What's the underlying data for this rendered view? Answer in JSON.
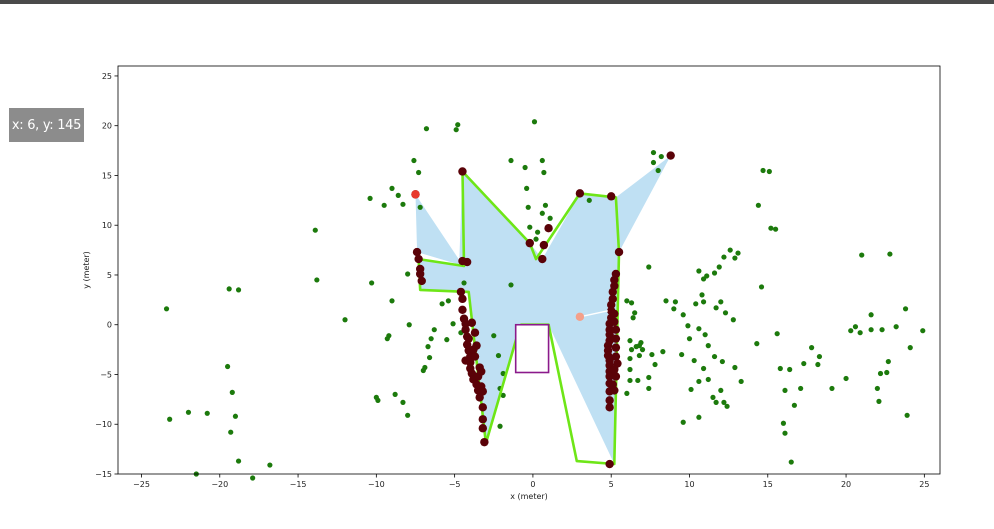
{
  "viewer": {
    "coordinate_readout": "x: 6, y: 145"
  },
  "colors": {
    "obstacle_points": "#1c7a0c",
    "boundary_points": "#5a0208",
    "free_space": "#bfe0f3",
    "polygon_edge": "#6ee617",
    "vehicle_box": "#8b1a8b",
    "target_marker": "#f4a08a",
    "start_marker": "#e8392d"
  },
  "chart_data": {
    "type": "scatter",
    "title": "",
    "xlabel": "x (meter)",
    "ylabel": "y (meter)",
    "xlim": [
      -26.5,
      26.0
    ],
    "ylim": [
      -15,
      26
    ],
    "xticks": [
      -25,
      -20,
      -15,
      -10,
      -5,
      0,
      5,
      10,
      15,
      20,
      25
    ],
    "yticks": [
      -15,
      -10,
      -5,
      0,
      5,
      10,
      15,
      20,
      25
    ],
    "xtick_labels": [
      "−25",
      "−20",
      "−15",
      "−10",
      "−5",
      "0",
      "5",
      "10",
      "15",
      "20",
      "25"
    ],
    "ytick_labels": [
      "−15",
      "−10",
      "−5",
      "0",
      "5",
      "10",
      "15",
      "20",
      "25"
    ],
    "grid": false,
    "free_space_polygon": [
      [
        1.0,
        0.0
      ],
      [
        5.2,
        -14.0
      ],
      [
        5.5,
        7.3
      ],
      [
        8.8,
        17.0
      ],
      [
        5.3,
        12.8
      ],
      [
        3.0,
        13.2
      ],
      [
        0.6,
        6.6
      ],
      [
        -0.2,
        8.2
      ],
      [
        -4.5,
        15.4
      ],
      [
        -4.7,
        6.5
      ],
      [
        -7.5,
        13.1
      ],
      [
        -7.4,
        7.3
      ],
      [
        -4.4,
        5.9
      ],
      [
        -7.3,
        6.6
      ],
      [
        -7.2,
        3.5
      ],
      [
        -4.1,
        3.3
      ],
      [
        -3.0,
        -11.9
      ],
      [
        -0.8,
        0.0
      ]
    ],
    "drivable_boundary": [
      [
        -0.8,
        0.0
      ],
      [
        -3.0,
        -11.9
      ],
      [
        -4.1,
        3.3
      ],
      [
        -7.2,
        3.5
      ],
      [
        -7.3,
        6.6
      ],
      [
        -4.4,
        5.9
      ],
      [
        -4.5,
        15.4
      ],
      [
        -0.2,
        8.2
      ],
      [
        0.2,
        6.6
      ],
      [
        3.0,
        13.2
      ],
      [
        5.3,
        12.8
      ],
      [
        5.5,
        7.3
      ],
      [
        5.2,
        -14.0
      ],
      [
        2.8,
        -13.7
      ],
      [
        1.0,
        0.0
      ],
      [
        -0.8,
        0.0
      ]
    ],
    "vehicle_box": {
      "x_min": -1.1,
      "x_max": 1.0,
      "y_min": -4.8,
      "y_max": 0.0
    },
    "markers": [
      {
        "role": "start",
        "x": -7.5,
        "y": 13.1
      },
      {
        "role": "target",
        "x": 3.0,
        "y": 0.8
      }
    ],
    "obstacle_points": [
      [
        -23.4,
        1.6
      ],
      [
        -23.2,
        -9.5
      ],
      [
        -22,
        -8.8
      ],
      [
        -21.5,
        -15
      ],
      [
        -20.8,
        -8.9
      ],
      [
        -19.4,
        3.6
      ],
      [
        -18.8,
        3.5
      ],
      [
        -19.5,
        -4.2
      ],
      [
        -19.2,
        -6.8
      ],
      [
        -19,
        -9.2
      ],
      [
        -19.3,
        -10.8
      ],
      [
        -18.8,
        -13.7
      ],
      [
        -17.9,
        -15.4
      ],
      [
        -16.8,
        -14.1
      ],
      [
        -13.9,
        9.5
      ],
      [
        -13.8,
        4.5
      ],
      [
        -12,
        0.5
      ],
      [
        -10.4,
        12.7
      ],
      [
        -10.3,
        4.2
      ],
      [
        -10,
        -7.3
      ],
      [
        -9.9,
        -7.6
      ],
      [
        -9.3,
        -1.4
      ],
      [
        -9.2,
        -1.1
      ],
      [
        -9,
        2.4
      ],
      [
        -8.8,
        -7
      ],
      [
        -8.3,
        -7.8
      ],
      [
        -8,
        -9.1
      ],
      [
        -9.5,
        12
      ],
      [
        -9,
        13.7
      ],
      [
        -8.6,
        13
      ],
      [
        -8.3,
        12.1
      ],
      [
        -8,
        5.1
      ],
      [
        -7.9,
        0
      ],
      [
        -7.6,
        16.5
      ],
      [
        -7.3,
        15.3
      ],
      [
        -7.2,
        11.8
      ],
      [
        -6.8,
        19.7
      ],
      [
        -6.3,
        -0.5
      ],
      [
        -6.5,
        -1.4
      ],
      [
        -6.7,
        -2.2
      ],
      [
        -6.6,
        -3.3
      ],
      [
        -6.9,
        -4.3
      ],
      [
        -7,
        -4.6
      ],
      [
        -5.8,
        2.1
      ],
      [
        -5.4,
        2.4
      ],
      [
        -5.1,
        0.1
      ],
      [
        -4.9,
        19.6
      ],
      [
        -4.8,
        20.1
      ],
      [
        -4.6,
        -0.8
      ],
      [
        -5.5,
        -1.5
      ],
      [
        -4.2,
        -2.1
      ],
      [
        -4.4,
        4.2
      ],
      [
        -2.5,
        -1.1
      ],
      [
        -2.2,
        -3.1
      ],
      [
        -2.1,
        -6.4
      ],
      [
        -1.4,
        16.5
      ],
      [
        -1.9,
        -4.9
      ],
      [
        -1.9,
        -7.1
      ],
      [
        -2.1,
        -10.2
      ],
      [
        0.1,
        20.4
      ],
      [
        -0.5,
        15.8
      ],
      [
        -0.4,
        13.7
      ],
      [
        -0.3,
        11.8
      ],
      [
        -0.2,
        9.8
      ],
      [
        0.6,
        16.5
      ],
      [
        0.7,
        15.3
      ],
      [
        0.6,
        11.2
      ],
      [
        0.8,
        12
      ],
      [
        1.1,
        10.7
      ],
      [
        0.3,
        9.3
      ],
      [
        0.2,
        8.6
      ],
      [
        -1.4,
        4
      ],
      [
        3.6,
        12.5
      ],
      [
        5.1,
        12.8
      ],
      [
        6,
        2.4
      ],
      [
        6.3,
        2.2
      ],
      [
        6.4,
        0.7
      ],
      [
        6.5,
        1.2
      ],
      [
        6.2,
        -1.6
      ],
      [
        6.3,
        -2.5
      ],
      [
        6.2,
        -3.4
      ],
      [
        6.2,
        -4.5
      ],
      [
        6.2,
        -5.6
      ],
      [
        6,
        -6.9
      ],
      [
        6.6,
        -2.2
      ],
      [
        6.8,
        -2.1
      ],
      [
        6.7,
        -5.6
      ],
      [
        6.9,
        -1.8
      ],
      [
        6.8,
        -3.1
      ],
      [
        7,
        -2.5
      ],
      [
        7.4,
        -5.3
      ],
      [
        7.4,
        -6.4
      ],
      [
        7.7,
        16.3
      ],
      [
        7.7,
        17.3
      ],
      [
        8,
        15.5
      ],
      [
        8.2,
        16.9
      ],
      [
        7.4,
        5.8
      ],
      [
        8.5,
        2.4
      ],
      [
        9.1,
        2.3
      ],
      [
        9.6,
        1
      ],
      [
        9,
        1.6
      ],
      [
        9.9,
        -0.1
      ],
      [
        10,
        -1.4
      ],
      [
        9.5,
        -3
      ],
      [
        10.3,
        -3.6
      ],
      [
        10.6,
        -5.7
      ],
      [
        10.1,
        -6.5
      ],
      [
        10.6,
        -9.3
      ],
      [
        9.6,
        -9.8
      ],
      [
        10.9,
        -4.4
      ],
      [
        11.2,
        -5.5
      ],
      [
        11.5,
        -7.3
      ],
      [
        11.7,
        -7.8
      ],
      [
        12,
        -6.6
      ],
      [
        12.2,
        -7.8
      ],
      [
        10.6,
        5.4
      ],
      [
        10.9,
        4.6
      ],
      [
        11.1,
        4.9
      ],
      [
        11.6,
        5.2
      ],
      [
        11.9,
        5.8
      ],
      [
        12.2,
        6.8
      ],
      [
        12.6,
        7.5
      ],
      [
        12.9,
        6.7
      ],
      [
        13.1,
        7.2
      ],
      [
        10.4,
        2.1
      ],
      [
        10.8,
        3
      ],
      [
        10.9,
        2.3
      ],
      [
        11.7,
        1.7
      ],
      [
        12,
        2.3
      ],
      [
        12.3,
        1.2
      ],
      [
        12.8,
        0.5
      ],
      [
        10.6,
        -0.4
      ],
      [
        11,
        -1
      ],
      [
        11.2,
        -2.1
      ],
      [
        11.6,
        -3.2
      ],
      [
        12.1,
        -3.7
      ],
      [
        12.9,
        -4.3
      ],
      [
        13.3,
        -5.7
      ],
      [
        14.3,
        -1.9
      ],
      [
        14.6,
        3.8
      ],
      [
        15.1,
        15.4
      ],
      [
        14.7,
        15.5
      ],
      [
        14.4,
        12
      ],
      [
        15.2,
        9.7
      ],
      [
        15.5,
        9.6
      ],
      [
        15.6,
        -0.9
      ],
      [
        15.8,
        -4.4
      ],
      [
        16.1,
        -6.6
      ],
      [
        16,
        -9.9
      ],
      [
        16.1,
        -10.9
      ],
      [
        16.5,
        -13.8
      ],
      [
        16.7,
        -8.1
      ],
      [
        17.1,
        -6.4
      ],
      [
        17.3,
        -3.9
      ],
      [
        17.8,
        -2.3
      ],
      [
        18.2,
        -4
      ],
      [
        19.1,
        -6.4
      ],
      [
        20.3,
        -0.6
      ],
      [
        20.6,
        -0.2
      ],
      [
        20.9,
        -0.8
      ],
      [
        21,
        7
      ],
      [
        21.6,
        1
      ],
      [
        21.6,
        -0.5
      ],
      [
        22,
        -6.4
      ],
      [
        22.2,
        -4.9
      ],
      [
        22.1,
        -7.7
      ],
      [
        22.3,
        -0.5
      ],
      [
        22.6,
        -4.8
      ],
      [
        22.7,
        -3.7
      ],
      [
        23.2,
        -0.2
      ],
      [
        22.8,
        7.1
      ],
      [
        23.8,
        1.6
      ],
      [
        24.1,
        -2.3
      ],
      [
        23.9,
        -9.1
      ],
      [
        24.9,
        -0.6
      ],
      [
        16.4,
        -4.5
      ],
      [
        18.3,
        -3.2
      ],
      [
        20,
        -5.4
      ],
      [
        12.4,
        -8.2
      ],
      [
        8.3,
        -2.7
      ],
      [
        7.8,
        -4
      ],
      [
        7.6,
        -3
      ]
    ],
    "boundary_points": [
      [
        -7.5,
        13.1
      ],
      [
        -7.4,
        7.3
      ],
      [
        -7.3,
        6.6
      ],
      [
        -7.2,
        5.6
      ],
      [
        -7.2,
        5.1
      ],
      [
        -7.1,
        4.4
      ],
      [
        -4.5,
        15.4
      ],
      [
        -4.5,
        6.4
      ],
      [
        -4.2,
        6.3
      ],
      [
        -4.6,
        3.3
      ],
      [
        -4.5,
        2.6
      ],
      [
        -4.5,
        1.5
      ],
      [
        -4.4,
        0.6
      ],
      [
        -4.3,
        0.1
      ],
      [
        -4.3,
        -0.5
      ],
      [
        -4.2,
        -1.2
      ],
      [
        -4.2,
        -2
      ],
      [
        -4.1,
        -2.6
      ],
      [
        -4.0,
        -3.2
      ],
      [
        -4.0,
        -3.8
      ],
      [
        -4.0,
        -4.4
      ],
      [
        -3.9,
        -4.9
      ],
      [
        -3.8,
        -5.5
      ],
      [
        -3.6,
        -6
      ],
      [
        -3.5,
        -6.6
      ],
      [
        -3.4,
        -7.3
      ],
      [
        -3.2,
        -8.3
      ],
      [
        -3.2,
        -9.5
      ],
      [
        -3.1,
        -11.8
      ],
      [
        -3.2,
        -10.4
      ],
      [
        -3.8,
        -2.5
      ],
      [
        -4.1,
        -1.4
      ],
      [
        -3.9,
        0.2
      ],
      [
        -3.7,
        -0.8
      ],
      [
        -3.6,
        -2.1
      ],
      [
        -3.7,
        -3.2
      ],
      [
        -3.4,
        -4.3
      ],
      [
        -3.5,
        -5.2
      ],
      [
        -3.3,
        -6.2
      ],
      [
        -3.3,
        -4.7
      ],
      [
        -3.2,
        -6.7
      ],
      [
        -4.3,
        -3.6
      ],
      [
        -0.2,
        8.2
      ],
      [
        0.6,
        6.6
      ],
      [
        1.0,
        9.7
      ],
      [
        0.7,
        8.0
      ],
      [
        3.0,
        13.2
      ],
      [
        5.0,
        12.9
      ],
      [
        8.8,
        17.0
      ],
      [
        5.5,
        7.3
      ],
      [
        5.3,
        5.1
      ],
      [
        5.2,
        4.5
      ],
      [
        5.2,
        3.9
      ],
      [
        5.1,
        3.3
      ],
      [
        5.1,
        2.6
      ],
      [
        5.0,
        2
      ],
      [
        5.0,
        1.4
      ],
      [
        5.0,
        0.7
      ],
      [
        4.9,
        0.1
      ],
      [
        4.9,
        -0.5
      ],
      [
        4.9,
        -1
      ],
      [
        4.9,
        -1.6
      ],
      [
        4.8,
        -2.1
      ],
      [
        4.8,
        -2.6
      ],
      [
        4.8,
        -3.1
      ],
      [
        4.9,
        -3.6
      ],
      [
        4.9,
        -4.1
      ],
      [
        4.9,
        -4.7
      ],
      [
        4.9,
        -5.2
      ],
      [
        4.9,
        -5.9
      ],
      [
        4.9,
        -6.7
      ],
      [
        4.9,
        -7.6
      ],
      [
        5.2,
        1.1
      ],
      [
        5.2,
        0.3
      ],
      [
        5.3,
        -0.5
      ],
      [
        5.3,
        -1.4
      ],
      [
        5.3,
        -2.3
      ],
      [
        5.3,
        -3.2
      ],
      [
        5.4,
        -3.9
      ],
      [
        5.2,
        -4.5
      ],
      [
        5.3,
        -5.2
      ],
      [
        5.1,
        -6
      ],
      [
        5.2,
        -6.6
      ],
      [
        4.9,
        -14.0
      ],
      [
        4.9,
        -8.3
      ]
    ]
  }
}
